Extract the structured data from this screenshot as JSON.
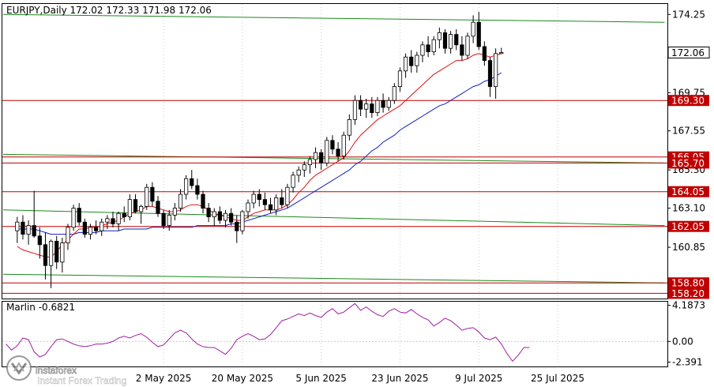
{
  "header": {
    "symbol_info": "EURJPY,Daily  172.02 172.33 171.98 172.06",
    "indicator_label": "Marlin -0.6821"
  },
  "watermark": {
    "brand": "instaforex",
    "tagline": "Instant Forex Trading",
    "logo_icon": "instaforex-logo-icon"
  },
  "colors": {
    "bull_body": "#ffffff",
    "bear_body": "#000000",
    "ma_fast": "#e01010",
    "ma_slow": "#1020c0",
    "trend_line": "#1a8a1a",
    "level_line": "#c00000",
    "level_label_bg": "#c00000",
    "current_label_bg": "#ffffff",
    "marlin": "#a020a0",
    "grid": "#cccccc"
  },
  "chart_data": [
    {
      "type": "candlestick",
      "title": "EURJPY,Daily",
      "ylim": [
        157.9,
        174.9
      ],
      "y_ticks": [
        174.25,
        169.75,
        167.55,
        165.3,
        163.1,
        160.85
      ],
      "y_tick_labels": [
        "174.25",
        "169.75",
        "167.55",
        "165.30",
        "163.10",
        "160.85"
      ],
      "current_price": 172.06,
      "current_price_label": "172.06",
      "x_labels": [
        "2 May 2025",
        "20 May 2025",
        "5 Jun 2025",
        "23 Jun 2025",
        "9 Jul 2025",
        "25 Jul 2025"
      ],
      "x_label_index": [
        28,
        42,
        56,
        70,
        84,
        98
      ],
      "horizontal_levels": [
        169.3,
        166.05,
        165.7,
        164.05,
        162.05,
        158.8,
        158.2
      ],
      "horizontal_level_labels": [
        "169.30",
        "166.05",
        "165.70",
        "164.05",
        "162.05",
        "158.80",
        "158.20"
      ],
      "candles": [
        [
          161.8,
          162.6,
          161.1,
          162.3
        ],
        [
          162.3,
          162.7,
          161.3,
          161.6
        ],
        [
          161.6,
          162.4,
          161.0,
          162.1
        ],
        [
          162.1,
          164.1,
          161.4,
          161.5
        ],
        [
          161.5,
          162.0,
          160.2,
          161.0
        ],
        [
          161.0,
          161.7,
          159.0,
          159.8
        ],
        [
          159.8,
          161.3,
          158.5,
          161.2
        ],
        [
          161.2,
          161.5,
          159.6,
          160.0
        ],
        [
          160.0,
          161.4,
          159.4,
          161.1
        ],
        [
          161.1,
          162.2,
          160.7,
          162.0
        ],
        [
          162.0,
          163.3,
          161.8,
          163.1
        ],
        [
          163.1,
          163.4,
          162.1,
          162.3
        ],
        [
          162.3,
          162.5,
          161.4,
          161.6
        ],
        [
          161.6,
          162.2,
          161.3,
          162.0
        ],
        [
          162.0,
          162.4,
          161.6,
          161.8
        ],
        [
          161.8,
          162.5,
          161.5,
          162.3
        ],
        [
          162.3,
          162.7,
          161.9,
          162.5
        ],
        [
          162.5,
          162.9,
          162.0,
          162.2
        ],
        [
          162.2,
          162.9,
          161.8,
          162.8
        ],
        [
          162.8,
          163.2,
          162.3,
          162.6
        ],
        [
          162.6,
          163.9,
          162.4,
          163.6
        ],
        [
          163.6,
          163.9,
          162.8,
          162.9
        ],
        [
          162.9,
          163.3,
          162.2,
          163.2
        ],
        [
          163.2,
          164.5,
          163.0,
          164.3
        ],
        [
          164.3,
          164.6,
          163.2,
          163.5
        ],
        [
          163.5,
          163.8,
          162.6,
          162.8
        ],
        [
          162.8,
          163.0,
          161.9,
          162.1
        ],
        [
          162.1,
          163.0,
          161.8,
          162.7
        ],
        [
          162.7,
          163.4,
          162.4,
          163.1
        ],
        [
          163.1,
          164.2,
          162.9,
          163.9
        ],
        [
          163.9,
          165.0,
          163.6,
          164.8
        ],
        [
          164.8,
          165.3,
          164.2,
          164.4
        ],
        [
          164.4,
          164.8,
          163.6,
          163.9
        ],
        [
          163.9,
          164.1,
          162.8,
          163.1
        ],
        [
          163.1,
          163.4,
          162.3,
          162.6
        ],
        [
          162.6,
          163.1,
          162.1,
          162.9
        ],
        [
          162.9,
          163.2,
          162.2,
          162.4
        ],
        [
          162.4,
          163.0,
          162.0,
          162.8
        ],
        [
          162.8,
          163.1,
          162.1,
          162.3
        ],
        [
          162.3,
          162.7,
          161.1,
          161.8
        ],
        [
          161.8,
          163.0,
          161.6,
          162.9
        ],
        [
          162.9,
          163.6,
          162.5,
          163.4
        ],
        [
          163.4,
          164.1,
          163.1,
          163.9
        ],
        [
          163.9,
          164.2,
          163.2,
          163.6
        ],
        [
          163.6,
          164.0,
          163.0,
          163.3
        ],
        [
          163.3,
          163.7,
          162.8,
          163.0
        ],
        [
          163.0,
          163.9,
          162.7,
          163.7
        ],
        [
          163.7,
          164.2,
          163.1,
          163.3
        ],
        [
          163.3,
          164.5,
          163.1,
          164.3
        ],
        [
          164.3,
          165.2,
          164.0,
          165.0
        ],
        [
          165.0,
          165.5,
          164.6,
          165.3
        ],
        [
          165.3,
          165.8,
          164.9,
          165.6
        ],
        [
          165.6,
          166.1,
          165.1,
          165.9
        ],
        [
          165.9,
          166.6,
          165.4,
          166.3
        ],
        [
          166.3,
          166.5,
          165.3,
          165.7
        ],
        [
          165.7,
          167.2,
          165.5,
          167.0
        ],
        [
          167.0,
          167.3,
          166.2,
          166.5
        ],
        [
          166.5,
          166.9,
          165.8,
          166.1
        ],
        [
          166.1,
          167.5,
          165.9,
          167.3
        ],
        [
          167.3,
          168.5,
          167.0,
          168.2
        ],
        [
          168.2,
          169.6,
          167.9,
          169.3
        ],
        [
          169.3,
          169.6,
          168.4,
          168.8
        ],
        [
          168.8,
          169.4,
          168.3,
          169.1
        ],
        [
          169.1,
          169.5,
          168.3,
          168.6
        ],
        [
          168.6,
          169.5,
          168.4,
          169.3
        ],
        [
          169.3,
          169.7,
          168.6,
          168.9
        ],
        [
          168.9,
          169.5,
          168.7,
          169.3
        ],
        [
          169.3,
          170.3,
          169.1,
          170.1
        ],
        [
          170.1,
          171.2,
          169.8,
          171.0
        ],
        [
          171.0,
          172.0,
          170.6,
          171.8
        ],
        [
          171.8,
          172.2,
          170.9,
          171.3
        ],
        [
          171.3,
          172.1,
          170.9,
          171.9
        ],
        [
          171.9,
          172.7,
          171.5,
          172.5
        ],
        [
          172.5,
          173.0,
          171.8,
          172.1
        ],
        [
          172.1,
          173.0,
          171.9,
          172.8
        ],
        [
          172.8,
          173.5,
          172.3,
          173.2
        ],
        [
          173.2,
          173.4,
          172.0,
          172.3
        ],
        [
          172.3,
          173.3,
          172.0,
          173.1
        ],
        [
          173.1,
          173.4,
          172.2,
          172.5
        ],
        [
          172.5,
          173.0,
          171.6,
          171.9
        ],
        [
          171.9,
          173.2,
          171.7,
          173.0
        ],
        [
          173.0,
          174.2,
          172.6,
          173.8
        ],
        [
          173.8,
          174.4,
          172.2,
          172.4
        ],
        [
          172.4,
          172.7,
          171.3,
          171.6
        ],
        [
          171.6,
          171.8,
          169.5,
          170.1
        ],
        [
          170.1,
          172.3,
          169.4,
          172.0
        ],
        [
          172.0,
          172.33,
          171.98,
          172.06
        ]
      ],
      "first_candle_index": 2,
      "ma_fast": [
        160.9,
        160.7,
        160.6,
        160.5,
        160.4,
        160.3,
        160.3,
        160.6,
        161.0,
        161.3,
        161.6,
        161.9,
        161.9,
        162.0,
        162.0,
        162.1,
        162.2,
        162.3,
        162.4,
        162.6,
        162.8,
        162.9,
        163.0,
        163.2,
        163.2,
        163.1,
        163.0,
        162.9,
        162.9,
        163.0,
        163.2,
        163.3,
        163.3,
        163.2,
        163.0,
        162.8,
        162.7,
        162.6,
        162.5,
        162.4,
        162.4,
        162.6,
        162.8,
        162.9,
        163.0,
        163.0,
        163.0,
        163.1,
        163.3,
        163.6,
        164.0,
        164.3,
        164.7,
        165.0,
        165.2,
        165.4,
        165.6,
        165.8,
        166.0,
        166.4,
        166.9,
        167.3,
        167.6,
        167.9,
        168.2,
        168.4,
        168.6,
        168.8,
        169.0,
        169.3,
        169.6,
        169.9,
        170.2,
        170.5,
        170.8,
        171.0,
        171.2,
        171.4,
        171.6,
        171.6,
        171.7,
        171.9,
        172.0,
        171.9,
        171.8,
        171.9,
        172.0
      ],
      "ma_slow": [
        161.9,
        161.9,
        161.9,
        161.9,
        161.8,
        161.7,
        161.6,
        161.6,
        161.6,
        161.6,
        161.6,
        161.7,
        161.7,
        161.7,
        161.7,
        161.8,
        161.8,
        161.8,
        161.8,
        161.9,
        161.9,
        161.9,
        161.9,
        161.9,
        162.0,
        162.0,
        162.0,
        162.0,
        162.0,
        162.0,
        162.0,
        162.0,
        162.1,
        162.1,
        162.1,
        162.1,
        162.1,
        162.1,
        162.2,
        162.2,
        162.3,
        162.4,
        162.5,
        162.6,
        162.7,
        162.8,
        162.9,
        163.0,
        163.1,
        163.3,
        163.5,
        163.7,
        163.9,
        164.1,
        164.3,
        164.5,
        164.7,
        164.9,
        165.1,
        165.3,
        165.6,
        165.8,
        166.1,
        166.4,
        166.6,
        166.9,
        167.1,
        167.3,
        167.6,
        167.8,
        168.0,
        168.2,
        168.4,
        168.6,
        168.8,
        169.0,
        169.1,
        169.3,
        169.5,
        169.7,
        169.9,
        170.1,
        170.2,
        170.4,
        170.5,
        170.7,
        170.9
      ],
      "trend_lines": [
        [
          0,
          174.25,
          117,
          173.8
        ],
        [
          0,
          166.2,
          117,
          165.7
        ],
        [
          0,
          163.0,
          117,
          162.1
        ],
        [
          0,
          159.3,
          117,
          158.8
        ]
      ]
    },
    {
      "type": "line",
      "title": "Marlin -0.6821",
      "ylim": [
        -2.9,
        4.7
      ],
      "y_ticks": [
        4.1873,
        0.0,
        -2.391
      ],
      "y_tick_labels": [
        "4.1873",
        "0.00",
        "-2.391"
      ],
      "series": [
        {
          "values": [
            -0.3,
            -1.0,
            -0.5,
            0.4,
            0.2,
            -1.2,
            -1.8,
            -1.5,
            -0.6,
            0.2,
            0.3,
            0.0,
            -0.3,
            -0.5,
            -0.6,
            -0.5,
            -0.3,
            -0.3,
            -0.2,
            0.0,
            0.4,
            0.6,
            0.4,
            0.7,
            0.9,
            0.5,
            -0.1,
            -0.6,
            -0.4,
            0.3,
            1.0,
            1.3,
            1.0,
            0.3,
            -0.3,
            -0.6,
            -0.7,
            -0.7,
            -1.1,
            -1.5,
            -0.8,
            0.2,
            0.6,
            0.9,
            0.6,
            0.2,
            0.3,
            0.8,
            1.6,
            2.4,
            2.6,
            2.9,
            3.2,
            3.0,
            3.3,
            3.0,
            2.8,
            3.4,
            3.8,
            3.2,
            3.4,
            3.9,
            4.4,
            3.6,
            4.0,
            3.5,
            3.1,
            2.9,
            3.5,
            3.8,
            3.4,
            3.3,
            3.7,
            3.2,
            2.8,
            2.5,
            1.8,
            2.2,
            2.7,
            2.4,
            1.9,
            1.3,
            1.5,
            1.6,
            1.1,
            0.4,
            0.2,
            0.5,
            -0.3,
            -1.4,
            -2.3,
            -1.6,
            -0.7,
            -0.7
          ],
          "first_index": 0
        }
      ]
    }
  ]
}
